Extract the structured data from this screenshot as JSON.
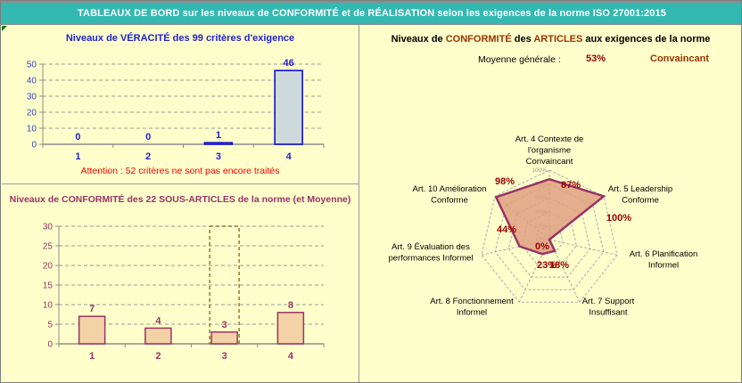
{
  "header": {
    "title": "TABLEAUX DE BORD sur les niveaux de CONFORMITÉ et de RÉALISATION selon les exigences de la norme ISO 27001:2015",
    "bg_color": "#33B8B2",
    "text_color": "#FFFFFF"
  },
  "panels": {
    "articles": {
      "title_parts": [
        {
          "text": "Niveaux de "
        },
        {
          "text": "CONFORMITÉ"
        },
        {
          "text": " des "
        },
        {
          "text": "ARTICLES"
        },
        {
          "text": " aux exigences de la norme"
        }
      ],
      "average_label": "Moyenne générale :",
      "average_value": "53%",
      "average_rating": "Convaincant"
    }
  },
  "chart_data": [
    {
      "id": "veracity",
      "type": "bar",
      "title": "Niveaux de VÉRACITÉ des 99 critères d'exigence",
      "categories": [
        "1",
        "2",
        "3",
        "4"
      ],
      "values": [
        0,
        0,
        1,
        46
      ],
      "ylim": [
        0,
        50
      ],
      "ytick_step": 10,
      "grid": true,
      "note": "Attention : 52 critères ne sont pas encore traités",
      "bar_fill": "#CDD9DC",
      "bar_stroke": "#0000CC",
      "label_color": "#2222CC",
      "tick_color": "#3344BB",
      "note_color": "#FF0000"
    },
    {
      "id": "sous_articles",
      "type": "bar",
      "title": "Niveaux de CONFORMITÉ des 22 SOUS-ARTICLES de la norme (et Moyenne)",
      "categories": [
        "1",
        "2",
        "3",
        "4"
      ],
      "values": [
        7,
        4,
        3,
        8
      ],
      "ylim": [
        0,
        30
      ],
      "ytick_step": 5,
      "grid": true,
      "overlay": {
        "name": "Moyenne",
        "category_index": 2,
        "value": 30,
        "style": "dashed-outline",
        "stroke": "#8F7A2E"
      },
      "bar_fill": "#F2D2A6",
      "bar_stroke": "#993366",
      "label_color": "#993366",
      "tick_color": "#993366"
    },
    {
      "id": "articles",
      "type": "radar",
      "title": "Niveaux de CONFORMITÉ des ARTICLES aux exigences de la norme",
      "average": "53%",
      "average_rating": "Convaincant",
      "rlim": [
        0,
        100
      ],
      "rtick_step": 20,
      "rtick_suffix": "%",
      "fill": "#DFA080",
      "stroke": "#993366",
      "value_label_color": "#990000",
      "grid_color": "#ABABAB",
      "axes": [
        {
          "label": "Art. 4 Contexte de l'organisme",
          "rating": "Convaincant",
          "value": 87,
          "lines": [
            "Art. 4 Contexte de",
            "l'organisme",
            "Convaincant"
          ]
        },
        {
          "label": "Art. 5 Leadership",
          "rating": "Conforme",
          "value": 100,
          "lines": [
            "Art. 5 Leadership",
            "Conforme"
          ]
        },
        {
          "label": "Art. 6 Planification",
          "rating": "Informel",
          "value": 0,
          "lines": [
            "Art. 6 Planification",
            "Informel"
          ]
        },
        {
          "label": "Art. 7 Support",
          "rating": "Insuffisant",
          "value": 18,
          "lines": [
            "Art. 7 Support",
            "Insuffisant"
          ]
        },
        {
          "label": "Art. 8 Fonctionnement",
          "rating": "Informel",
          "value": 23,
          "lines": [
            "Art. 8 Fonctionnement",
            "Informel"
          ]
        },
        {
          "label": "Art. 9 Évaluation des performances",
          "rating": "Informel",
          "value": 44,
          "lines": [
            "Art. 9 Évaluation des",
            "performances Informel"
          ]
        },
        {
          "label": "Art. 10 Amélioration",
          "rating": "Conforme",
          "value": 98,
          "lines": [
            "Art. 10 Amélioration",
            "Conforme"
          ]
        }
      ]
    }
  ]
}
